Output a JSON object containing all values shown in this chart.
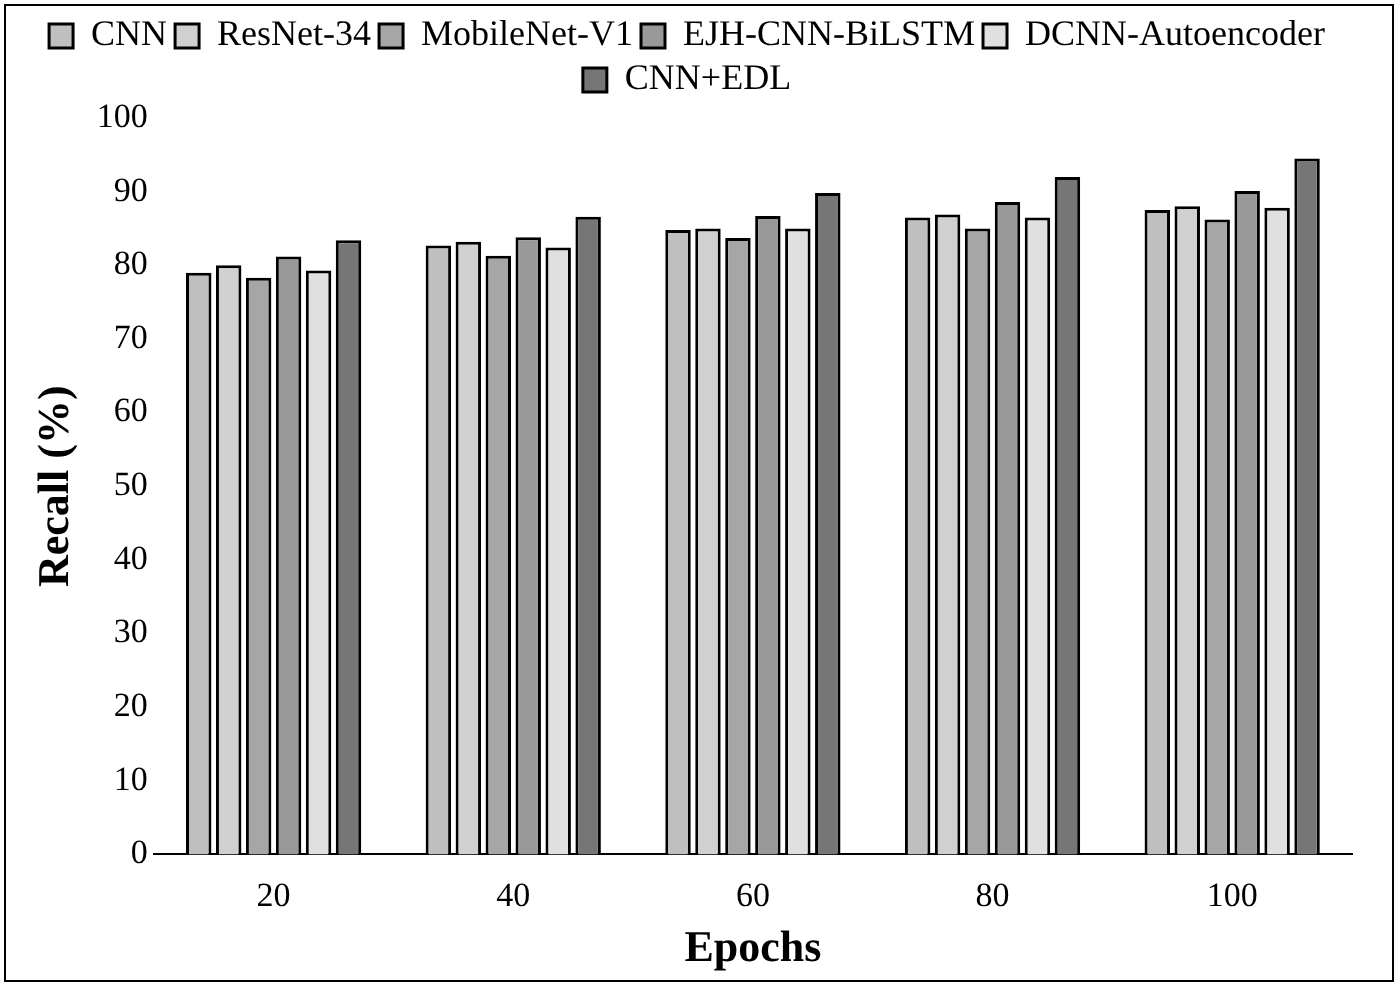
{
  "chart_data": {
    "type": "bar",
    "xlabel": "Epochs",
    "ylabel": "Recall (%)",
    "categories": [
      "20",
      "40",
      "60",
      "80",
      "100"
    ],
    "series": [
      {
        "name": "CNN",
        "color": "#bfbfbf",
        "values": [
          79,
          82.7,
          84.8,
          86.5,
          87.5
        ]
      },
      {
        "name": "ResNet-34",
        "color": "#d0d0d0",
        "values": [
          80,
          83.2,
          85,
          86.9,
          88
        ]
      },
      {
        "name": "MobileNet-V1",
        "color": "#a6a6a6",
        "values": [
          78.3,
          81.3,
          83.7,
          85,
          86.2
        ]
      },
      {
        "name": "EJH-CNN-BiLSTM",
        "color": "#999999",
        "values": [
          81.2,
          83.8,
          86.7,
          88.6,
          90.1
        ]
      },
      {
        "name": "DCNN-Autoencoder",
        "color": "#e0e0e0",
        "values": [
          79.3,
          82.4,
          85,
          86.5,
          87.8
        ]
      },
      {
        "name": "CNN+EDL",
        "color": "#767676",
        "values": [
          83.4,
          86.6,
          89.8,
          92,
          94.5
        ]
      }
    ],
    "ylim": [
      0,
      100
    ],
    "yticks": [
      0,
      10,
      20,
      30,
      40,
      50,
      60,
      70,
      80,
      90,
      100
    ],
    "grid": false,
    "legend": "top"
  }
}
